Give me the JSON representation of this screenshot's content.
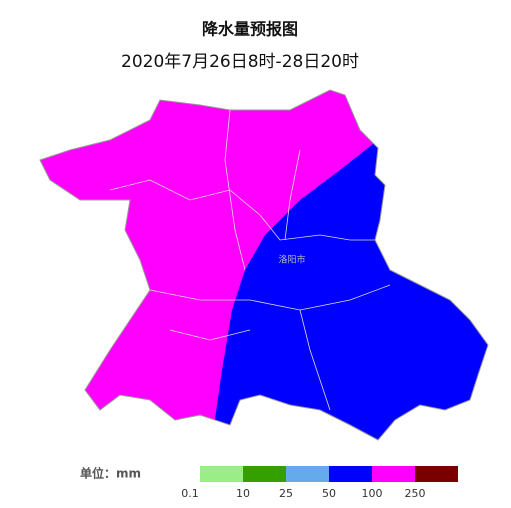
{
  "title": "降水量预报图",
  "subtitle": "2020年7月26日8时-28日20时",
  "map_label": "洛阳市",
  "legend": {
    "unit_label": "单位：mm",
    "items": [
      {
        "color": "#99ee88",
        "label": 0.1
      },
      {
        "color": "#33a000",
        "label": 10
      },
      {
        "color": "#66aaee",
        "label": 25
      },
      {
        "color": "#0000ff",
        "label": 50
      },
      {
        "color": "#ff00ff",
        "label": 100
      },
      {
        "color": "#7a0000",
        "label": 250
      }
    ]
  }
}
